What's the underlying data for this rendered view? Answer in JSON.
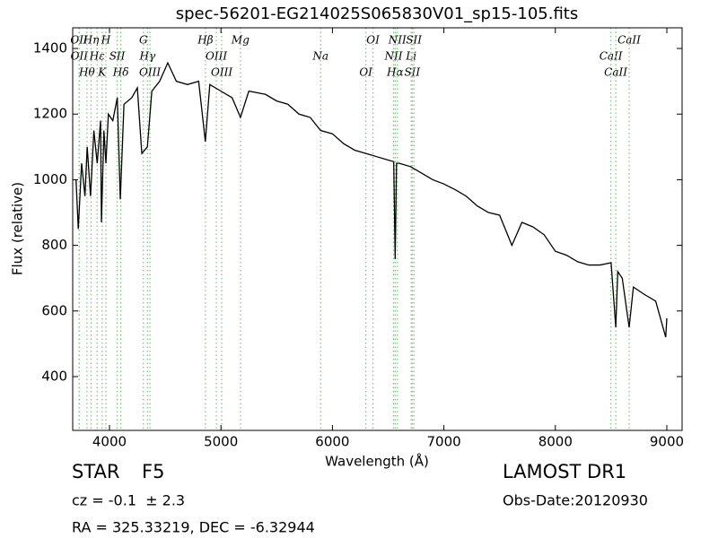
{
  "chart_data": {
    "type": "line",
    "title": "spec-56201-EG214025S065830V01_sp15-105.fits",
    "x_label": "Wavelength (Å)",
    "y_label": "Flux (relative)",
    "xlim": [
      3670,
      9137
    ],
    "ylim": [
      236,
      1463
    ],
    "xticks": [
      4000,
      5000,
      6000,
      7000,
      8000,
      9000
    ],
    "yticks": [
      400,
      600,
      800,
      1000,
      1200,
      1400
    ],
    "x": [
      3700,
      3720,
      3750,
      3780,
      3800,
      3830,
      3860,
      3890,
      3920,
      3928,
      3950,
      3968,
      3990,
      4030,
      4070,
      4097,
      4130,
      4200,
      4250,
      4290,
      4340,
      4380,
      4450,
      4523,
      4600,
      4700,
      4800,
      4860,
      4900,
      5000,
      5100,
      5175,
      5250,
      5400,
      5500,
      5600,
      5700,
      5800,
      5894,
      6000,
      6100,
      6200,
      6300,
      6400,
      6500,
      6550,
      6563,
      6575,
      6600,
      6700,
      6800,
      6900,
      7000,
      7100,
      7200,
      7300,
      7400,
      7500,
      7610,
      7700,
      7800,
      7900,
      8000,
      8100,
      8200,
      8300,
      8400,
      8500,
      8542,
      8560,
      8600,
      8662,
      8700,
      8800,
      8900,
      8990,
      9000
    ],
    "series": [
      {
        "name": "flux",
        "color": "#000000",
        "values": [
          1000,
          850,
          1050,
          950,
          1100,
          950,
          1150,
          1050,
          1180,
          870,
          1150,
          1050,
          1200,
          1180,
          1250,
          940,
          1230,
          1250,
          1280,
          1080,
          1100,
          1270,
          1300,
          1356,
          1300,
          1290,
          1300,
          1116,
          1290,
          1270,
          1250,
          1190,
          1270,
          1260,
          1240,
          1230,
          1200,
          1190,
          1150,
          1140,
          1110,
          1090,
          1080,
          1070,
          1060,
          1055,
          758,
          1050,
          1050,
          1040,
          1020,
          1000,
          987,
          970,
          950,
          920,
          900,
          892,
          800,
          870,
          856,
          832,
          782,
          770,
          750,
          740,
          740,
          747,
          550,
          720,
          700,
          550,
          673,
          650,
          630,
          520,
          578
        ]
      }
    ],
    "line_color": "#7fbf7f",
    "spectral_lines": [
      {
        "name": "OII",
        "wavelength": 3727
      },
      {
        "name": "OII",
        "wavelength": 3729
      },
      {
        "name": "Hθ",
        "wavelength": 3798
      },
      {
        "name": "Hη",
        "wavelength": 3835
      },
      {
        "name": "Hε",
        "wavelength": 3889
      },
      {
        "name": "K",
        "wavelength": 3934
      },
      {
        "name": "H",
        "wavelength": 3968
      },
      {
        "name": "SII",
        "wavelength": 4069
      },
      {
        "name": "Hδ",
        "wavelength": 4102
      },
      {
        "name": "G",
        "wavelength": 4304
      },
      {
        "name": "Hγ",
        "wavelength": 4341
      },
      {
        "name": "OIII",
        "wavelength": 4363
      },
      {
        "name": "Hβ",
        "wavelength": 4861
      },
      {
        "name": "OIII",
        "wavelength": 4959
      },
      {
        "name": "OIII",
        "wavelength": 5007
      },
      {
        "name": "Mg",
        "wavelength": 5175
      },
      {
        "name": "Na",
        "wavelength": 5894
      },
      {
        "name": "OI",
        "wavelength": 6300
      },
      {
        "name": "OI",
        "wavelength": 6364
      },
      {
        "name": "NII",
        "wavelength": 6548
      },
      {
        "name": "Hα",
        "wavelength": 6563
      },
      {
        "name": "NII",
        "wavelength": 6583
      },
      {
        "name": "Li",
        "wavelength": 6707
      },
      {
        "name": "SII",
        "wavelength": 6716
      },
      {
        "name": "SII",
        "wavelength": 6731
      },
      {
        "name": "CaII",
        "wavelength": 8498
      },
      {
        "name": "CaII",
        "wavelength": 8542
      },
      {
        "name": "CaII",
        "wavelength": 8662
      }
    ],
    "object_class": "STAR",
    "subclass": "F5",
    "redshift_text": "cz = -0.1  ± 2.3",
    "coordinates": "RA = 325.33219, DEC = -6.32944",
    "survey": "LAMOST DR1",
    "obs_date": "Obs-Date:20120930"
  }
}
